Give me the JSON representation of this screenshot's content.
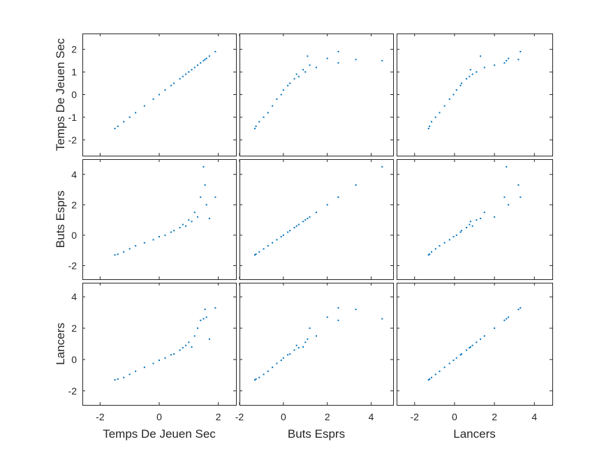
{
  "chart_data": {
    "type": "scatter",
    "layout": "scatter-matrix",
    "variables": [
      "Temps De Jeuen Sec",
      "Buts Esprs",
      "Lancers"
    ],
    "color": "#0072BD",
    "grid": false,
    "xlim": {
      "Temps De Jeuen Sec": [
        -2.6,
        2.6
      ],
      "Buts Esprs": [
        -2.0,
        5.0
      ],
      "Lancers": [
        -2.9,
        4.9
      ]
    },
    "ylim": {
      "Temps De Jeuen Sec": [
        -2.7,
        2.7
      ],
      "Buts Esprs": [
        -2.9,
        5.0
      ],
      "Lancers": [
        -2.9,
        4.9
      ]
    },
    "xticks": {
      "Temps De Jeuen Sec": [
        -2,
        0,
        2
      ],
      "Buts Esprs": [
        -2,
        0,
        2,
        4
      ],
      "Lancers": [
        -2,
        0,
        2,
        4
      ]
    },
    "xtick_labels": {
      "Temps De Jeuen Sec": [
        "-2",
        "0",
        "2"
      ],
      "Buts Esprs": [
        "-2",
        "0",
        "2",
        "4"
      ],
      "Lancers": [
        "-2",
        "0",
        "2",
        "4"
      ]
    },
    "yticks": {
      "Temps De Jeuen Sec": [
        -2,
        -1,
        0,
        1,
        2
      ],
      "Buts Esprs": [
        -2,
        0,
        2,
        4
      ],
      "Lancers": [
        -2,
        0,
        2,
        4
      ]
    },
    "ytick_labels": {
      "Temps De Jeuen Sec": [
        "-2",
        "-1",
        "0",
        "1",
        "2"
      ],
      "Buts Esprs": [
        "-2",
        "0",
        "2",
        "4"
      ],
      "Lancers": [
        "-2",
        "0",
        "2",
        "4"
      ]
    },
    "samples": [
      {
        "tdj": -1.5,
        "buts": -1.3,
        "lancers": -1.3
      },
      {
        "tdj": -1.4,
        "buts": -1.25,
        "lancers": -1.25
      },
      {
        "tdj": -1.2,
        "buts": -1.1,
        "lancers": -1.15
      },
      {
        "tdj": -1.0,
        "buts": -0.9,
        "lancers": -0.95
      },
      {
        "tdj": -0.8,
        "buts": -0.7,
        "lancers": -0.75
      },
      {
        "tdj": -0.5,
        "buts": -0.5,
        "lancers": -0.5
      },
      {
        "tdj": -0.2,
        "buts": -0.3,
        "lancers": -0.25
      },
      {
        "tdj": 0.0,
        "buts": -0.1,
        "lancers": -0.05
      },
      {
        "tdj": 0.2,
        "buts": 0.0,
        "lancers": 0.1
      },
      {
        "tdj": 0.4,
        "buts": 0.2,
        "lancers": 0.3
      },
      {
        "tdj": 0.5,
        "buts": 0.3,
        "lancers": 0.35
      },
      {
        "tdj": 0.7,
        "buts": 0.5,
        "lancers": 0.6
      },
      {
        "tdj": 0.8,
        "buts": 0.7,
        "lancers": 0.75
      },
      {
        "tdj": 0.9,
        "buts": 0.6,
        "lancers": 0.9
      },
      {
        "tdj": 1.0,
        "buts": 1.0,
        "lancers": 1.1
      },
      {
        "tdj": 1.1,
        "buts": 0.9,
        "lancers": 0.8
      },
      {
        "tdj": 1.2,
        "buts": 1.5,
        "lancers": 1.5
      },
      {
        "tdj": 1.3,
        "buts": 1.2,
        "lancers": 2.0
      },
      {
        "tdj": 1.4,
        "buts": 2.5,
        "lancers": 2.5
      },
      {
        "tdj": 1.55,
        "buts": 3.3,
        "lancers": 3.2
      },
      {
        "tdj": 1.6,
        "buts": 2.0,
        "lancers": 2.7
      },
      {
        "tdj": 1.7,
        "buts": 1.1,
        "lancers": 1.3
      },
      {
        "tdj": 1.9,
        "buts": 2.5,
        "lancers": 3.3
      },
      {
        "tdj": 1.5,
        "buts": 4.5,
        "lancers": 2.6
      }
    ]
  }
}
